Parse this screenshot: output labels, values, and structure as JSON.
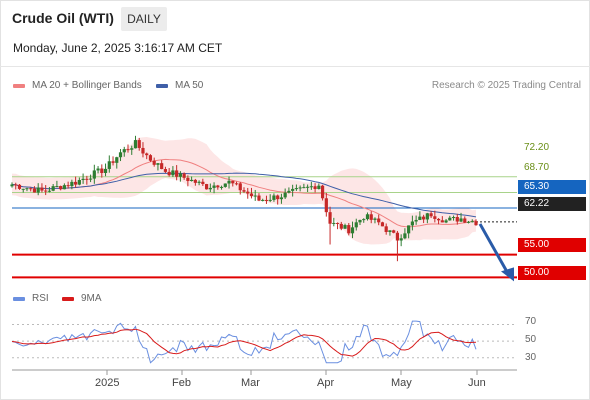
{
  "header": {
    "title": "Crude Oil (WTI)",
    "period": "DAILY",
    "datetime": "Monday, June 2, 2025 3:16:17 AM CET"
  },
  "legend": {
    "ma20_label": "MA 20 + Bollinger Bands",
    "ma50_label": "MA 50",
    "rsi_label": "RSI",
    "rsi_ma_label": "9MA",
    "copyright": "Research © 2025 Trading Central"
  },
  "colors": {
    "ma20": "#f08080",
    "ma50": "#3f5fa8",
    "bollinger_fill": "#fde2e2",
    "resistance": "#a8d38a",
    "support": "#e00000",
    "pivot": "#1565c0",
    "current": "#222222",
    "rsi": "#6a8fe0",
    "rsi_ma": "#d81b1b",
    "candle_up": "#2e7d32",
    "candle_down": "#c62828",
    "forecast_arrow": "#2a5ba8"
  },
  "chart_data": [
    {
      "type": "candlestick",
      "title": "Crude Oil (WTI)",
      "y_range": [
        45,
        90
      ],
      "x_labels": [
        "2025",
        "Feb",
        "Mar",
        "Apr",
        "May",
        "Jun"
      ],
      "levels": [
        {
          "value": 72.2,
          "label": "72.20",
          "kind": "resistance"
        },
        {
          "value": 68.7,
          "label": "68.70",
          "kind": "resistance"
        },
        {
          "value": 65.3,
          "label": "65.30",
          "kind": "pivot"
        },
        {
          "value": 62.22,
          "label": "62.22",
          "kind": "last"
        },
        {
          "value": 55.0,
          "label": "55.00",
          "kind": "support"
        },
        {
          "value": 50.0,
          "label": "50.00",
          "kind": "support"
        }
      ],
      "forecast": {
        "from": 62.22,
        "to": 50.0
      }
    },
    {
      "type": "line",
      "series": [
        {
          "name": "RSI"
        },
        {
          "name": "9MA"
        }
      ],
      "y_ticks": [
        "70",
        "50",
        "30"
      ],
      "y_range": [
        20,
        85
      ]
    }
  ]
}
